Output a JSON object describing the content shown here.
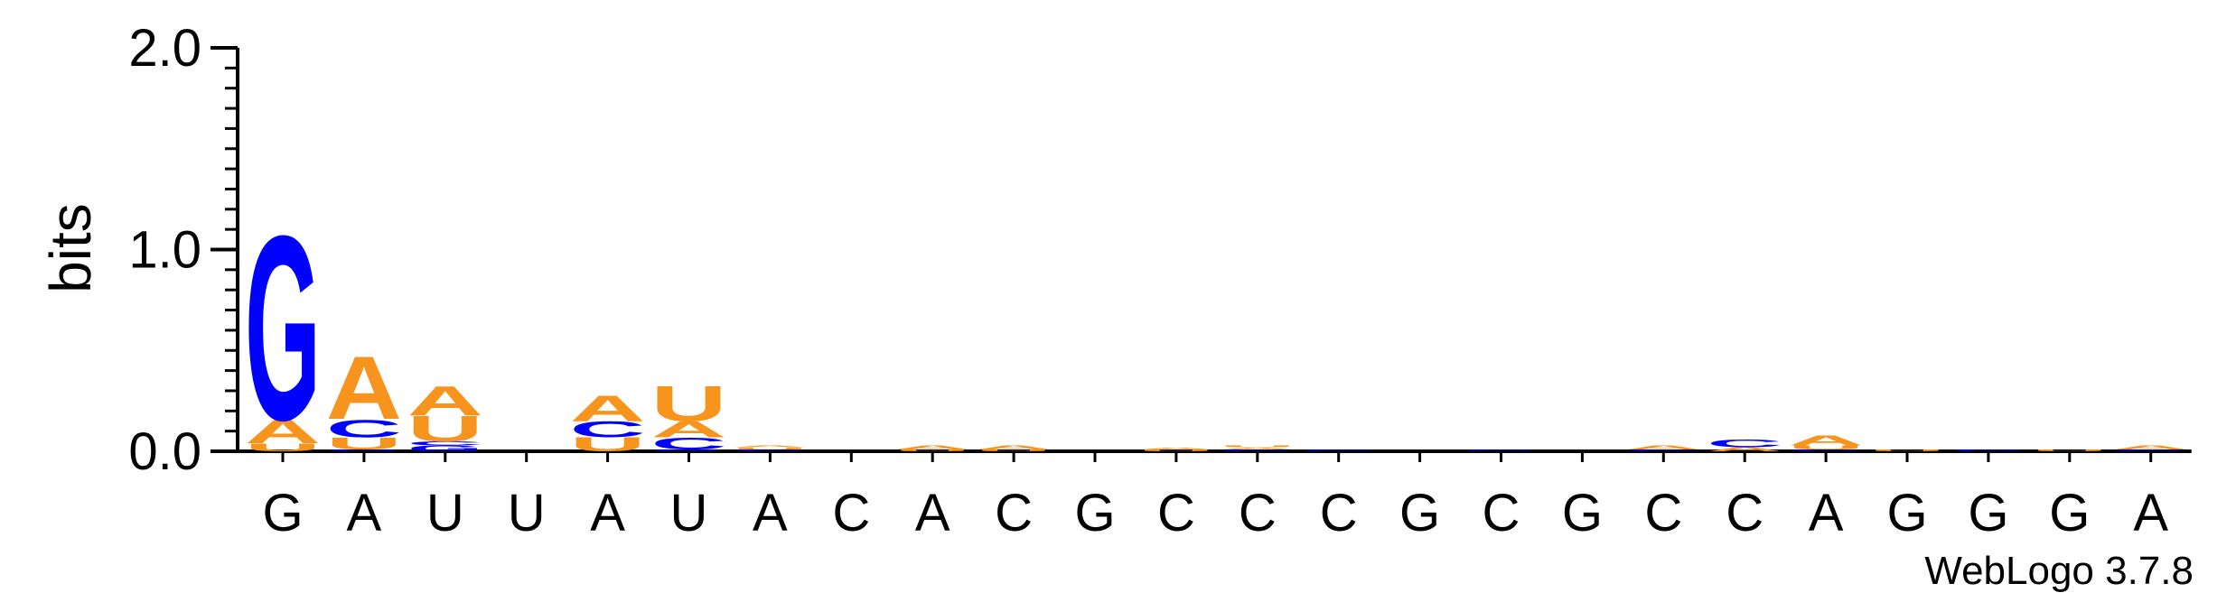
{
  "chart_data": {
    "type": "sequence_logo",
    "ylabel": "bits",
    "ylim": [
      0,
      2.0
    ],
    "yticks": [
      "0.0",
      "1.0",
      "2.0"
    ],
    "credit": "WebLogo 3.7.8",
    "colors": {
      "A": "#f7941d",
      "U": "#f7941d",
      "G": "#0000ff",
      "C": "#0000ff"
    },
    "positions": [
      {
        "label": "G",
        "stack": [
          {
            "letter": "U",
            "bits": 0.04
          },
          {
            "letter": "A",
            "bits": 0.12
          },
          {
            "letter": "G",
            "bits": 0.94
          }
        ]
      },
      {
        "label": "A",
        "stack": [
          {
            "letter": "G",
            "bits": 0.01
          },
          {
            "letter": "U",
            "bits": 0.06
          },
          {
            "letter": "C",
            "bits": 0.09
          },
          {
            "letter": "A",
            "bits": 0.32
          }
        ]
      },
      {
        "label": "U",
        "stack": [
          {
            "letter": "G",
            "bits": 0.03
          },
          {
            "letter": "C",
            "bits": 0.02
          },
          {
            "letter": "U",
            "bits": 0.13
          },
          {
            "letter": "A",
            "bits": 0.15
          }
        ]
      },
      {
        "label": "U",
        "stack": []
      },
      {
        "label": "A",
        "stack": [
          {
            "letter": "U",
            "bits": 0.07
          },
          {
            "letter": "C",
            "bits": 0.08
          },
          {
            "letter": "A",
            "bits": 0.13
          }
        ]
      },
      {
        "label": "U",
        "stack": [
          {
            "letter": "G",
            "bits": 0.01
          },
          {
            "letter": "C",
            "bits": 0.06
          },
          {
            "letter": "A",
            "bits": 0.08
          },
          {
            "letter": "U",
            "bits": 0.18
          }
        ]
      },
      {
        "label": "A",
        "stack": [
          {
            "letter": "C",
            "bits": 0.01
          },
          {
            "letter": "U",
            "bits": 0.01
          },
          {
            "letter": "A",
            "bits": 0.01
          }
        ]
      },
      {
        "label": "C",
        "stack": []
      },
      {
        "label": "A",
        "stack": [
          {
            "letter": "U",
            "bits": 0.01
          },
          {
            "letter": "A",
            "bits": 0.02
          }
        ]
      },
      {
        "label": "C",
        "stack": [
          {
            "letter": "U",
            "bits": 0.01
          },
          {
            "letter": "A",
            "bits": 0.02
          }
        ]
      },
      {
        "label": "G",
        "stack": []
      },
      {
        "label": "C",
        "stack": [
          {
            "letter": "U",
            "bits": 0.01
          },
          {
            "letter": "A",
            "bits": 0.01
          }
        ]
      },
      {
        "label": "C",
        "stack": [
          {
            "letter": "C",
            "bits": 0.01
          },
          {
            "letter": "A",
            "bits": 0.01
          },
          {
            "letter": "U",
            "bits": 0.01
          }
        ]
      },
      {
        "label": "C",
        "stack": [
          {
            "letter": "C",
            "bits": 0.005
          }
        ]
      },
      {
        "label": "G",
        "stack": []
      },
      {
        "label": "C",
        "stack": [
          {
            "letter": "C",
            "bits": 0.005
          }
        ]
      },
      {
        "label": "G",
        "stack": []
      },
      {
        "label": "C",
        "stack": [
          {
            "letter": "C",
            "bits": 0.01
          },
          {
            "letter": "A",
            "bits": 0.02
          }
        ]
      },
      {
        "label": "C",
        "stack": [
          {
            "letter": "A",
            "bits": 0.02
          },
          {
            "letter": "C",
            "bits": 0.04
          }
        ]
      },
      {
        "label": "A",
        "stack": [
          {
            "letter": "C",
            "bits": 0.01
          },
          {
            "letter": "U",
            "bits": 0.02
          },
          {
            "letter": "A",
            "bits": 0.05
          }
        ]
      },
      {
        "label": "G",
        "stack": [
          {
            "letter": "U",
            "bits": 0.01
          }
        ]
      },
      {
        "label": "G",
        "stack": [
          {
            "letter": "C",
            "bits": 0.01
          }
        ]
      },
      {
        "label": "G",
        "stack": [
          {
            "letter": "U",
            "bits": 0.01
          }
        ]
      },
      {
        "label": "A",
        "stack": [
          {
            "letter": "C",
            "bits": 0.01
          },
          {
            "letter": "A",
            "bits": 0.02
          }
        ]
      }
    ]
  }
}
